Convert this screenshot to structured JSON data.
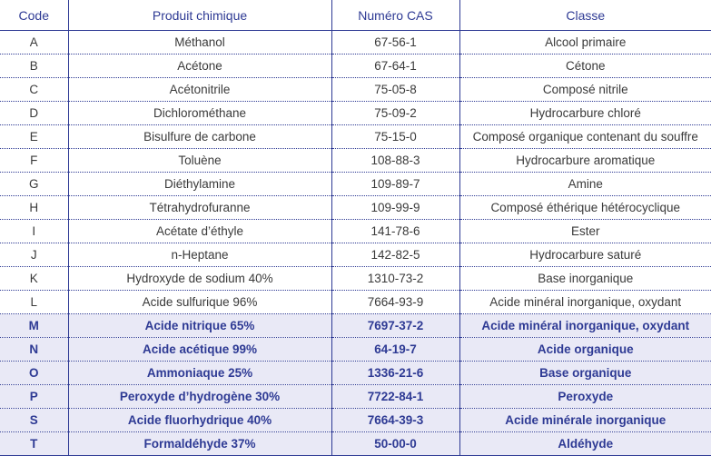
{
  "table": {
    "headers": [
      "Code",
      "Produit chimique",
      "Numéro CAS",
      "Classe"
    ],
    "rows": [
      {
        "code": "A",
        "produit": "Méthanol",
        "cas": "67-56-1",
        "classe": "Alcool primaire",
        "highlight": false
      },
      {
        "code": "B",
        "produit": "Acétone",
        "cas": "67-64-1",
        "classe": "Cétone",
        "highlight": false
      },
      {
        "code": "C",
        "produit": "Acétonitrile",
        "cas": "75-05-8",
        "classe": "Composé nitrile",
        "highlight": false
      },
      {
        "code": "D",
        "produit": "Dichlorométhane",
        "cas": "75-09-2",
        "classe": "Hydrocarbure chloré",
        "highlight": false
      },
      {
        "code": "E",
        "produit": "Bisulfure de carbone",
        "cas": "75-15-0",
        "classe": "Composé organique contenant du souffre",
        "highlight": false
      },
      {
        "code": "F",
        "produit": "Toluène",
        "cas": "108-88-3",
        "classe": "Hydrocarbure aromatique",
        "highlight": false
      },
      {
        "code": "G",
        "produit": "Diéthylamine",
        "cas": "109-89-7",
        "classe": "Amine",
        "highlight": false
      },
      {
        "code": "H",
        "produit": "Tétrahydrofuranne",
        "cas": "109-99-9",
        "classe": "Composé éthérique hétérocyclique",
        "highlight": false
      },
      {
        "code": "I",
        "produit": "Acétate d’éthyle",
        "cas": "141-78-6",
        "classe": "Ester",
        "highlight": false
      },
      {
        "code": "J",
        "produit": "n-Heptane",
        "cas": "142-82-5",
        "classe": "Hydrocarbure saturé",
        "highlight": false
      },
      {
        "code": "K",
        "produit": "Hydroxyde de sodium 40%",
        "cas": "1310-73-2",
        "classe": "Base inorganique",
        "highlight": false
      },
      {
        "code": "L",
        "produit": "Acide sulfurique 96%",
        "cas": "7664-93-9",
        "classe": "Acide minéral inorganique, oxydant",
        "highlight": false
      },
      {
        "code": "M",
        "produit": "Acide nitrique 65%",
        "cas": "7697-37-2",
        "classe": "Acide minéral inorganique, oxydant",
        "highlight": true
      },
      {
        "code": "N",
        "produit": "Acide acétique 99%",
        "cas": "64-19-7",
        "classe": "Acide organique",
        "highlight": true
      },
      {
        "code": "O",
        "produit": "Ammoniaque 25%",
        "cas": "1336-21-6",
        "classe": "Base organique",
        "highlight": true
      },
      {
        "code": "P",
        "produit": "Peroxyde d’hydrogène 30%",
        "cas": "7722-84-1",
        "classe": "Peroxyde",
        "highlight": true
      },
      {
        "code": "S",
        "produit": "Acide fluorhydrique  40%",
        "cas": "7664-39-3",
        "classe": "Acide minérale inorganique",
        "highlight": true
      },
      {
        "code": "T",
        "produit": "Formaldéhyde 37%",
        "cas": "50-00-0",
        "classe": "Aldéhyde",
        "highlight": true
      }
    ]
  }
}
